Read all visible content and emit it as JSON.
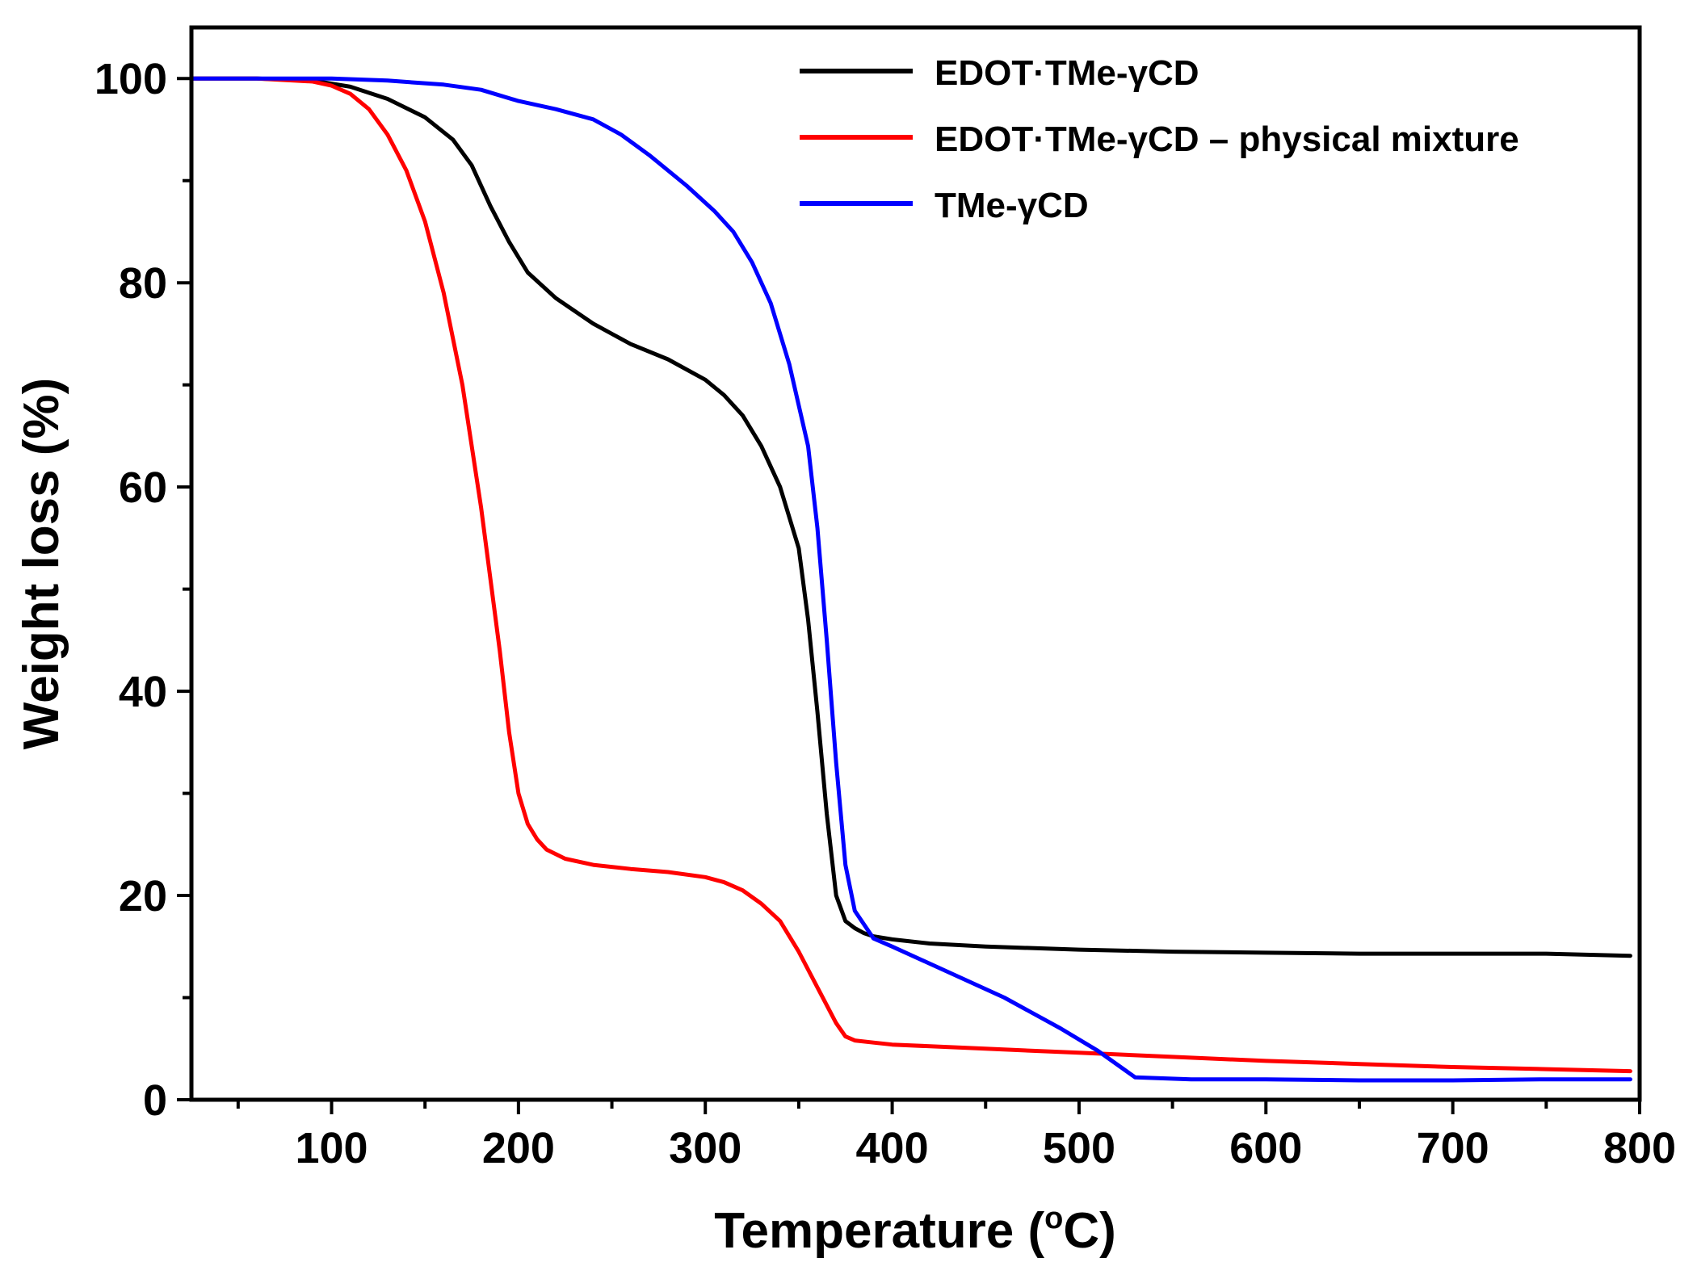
{
  "chart_data": {
    "type": "line",
    "xlabel_main": "Temperature (",
    "xlabel_sup": "o",
    "xlabel_end": "C)",
    "ylabel": "Weight loss (%)",
    "xlim": [
      25,
      800
    ],
    "ylim": [
      0,
      105
    ],
    "x_ticks": [
      100,
      200,
      300,
      400,
      500,
      600,
      700,
      800
    ],
    "x_minor_ticks": [
      50,
      150,
      250,
      350,
      450,
      550,
      650,
      750
    ],
    "y_ticks": [
      0,
      20,
      40,
      60,
      80,
      100
    ],
    "y_minor_ticks": [
      10,
      30,
      50,
      70,
      90
    ],
    "grid": false,
    "legend_position": "top-right",
    "series": [
      {
        "name": "EDOT·TMe-γCD",
        "color": "#000000",
        "x": [
          25,
          60,
          90,
          110,
          130,
          150,
          165,
          175,
          185,
          195,
          205,
          220,
          240,
          260,
          280,
          300,
          310,
          320,
          330,
          340,
          350,
          355,
          360,
          365,
          370,
          375,
          380,
          385,
          390,
          400,
          420,
          450,
          500,
          550,
          600,
          650,
          700,
          750,
          795
        ],
        "values": [
          100,
          100,
          99.8,
          99.2,
          98,
          96.2,
          94,
          91.5,
          87.5,
          84,
          81,
          78.5,
          76,
          74,
          72.5,
          70.5,
          69,
          67,
          64,
          60,
          54,
          47,
          38,
          28,
          20,
          17.5,
          16.8,
          16.3,
          16,
          15.7,
          15.3,
          15,
          14.7,
          14.5,
          14.4,
          14.3,
          14.3,
          14.3,
          14.1
        ]
      },
      {
        "name": "EDOT·TMe-γCD – physical mixture",
        "color": "#ff0000",
        "x": [
          25,
          60,
          90,
          100,
          110,
          120,
          130,
          140,
          150,
          160,
          170,
          180,
          190,
          195,
          200,
          205,
          210,
          215,
          225,
          240,
          260,
          280,
          300,
          310,
          320,
          330,
          340,
          350,
          360,
          370,
          375,
          380,
          390,
          400,
          450,
          500,
          550,
          600,
          650,
          700,
          750,
          795
        ],
        "values": [
          100,
          100,
          99.7,
          99.3,
          98.5,
          97,
          94.5,
          91,
          86,
          79,
          70,
          58,
          44,
          36,
          30,
          27,
          25.5,
          24.5,
          23.6,
          23,
          22.6,
          22.3,
          21.8,
          21.3,
          20.5,
          19.2,
          17.5,
          14.5,
          11,
          7.5,
          6.2,
          5.8,
          5.6,
          5.4,
          5,
          4.6,
          4.2,
          3.8,
          3.5,
          3.2,
          3,
          2.8
        ]
      },
      {
        "name": "TMe-γCD",
        "color": "#0000ff",
        "x": [
          25,
          100,
          130,
          160,
          180,
          200,
          220,
          240,
          255,
          270,
          290,
          305,
          315,
          325,
          335,
          345,
          355,
          360,
          365,
          370,
          375,
          380,
          390,
          400,
          430,
          460,
          490,
          510,
          530,
          560,
          600,
          650,
          700,
          750,
          795
        ],
        "values": [
          100,
          100,
          99.8,
          99.4,
          98.9,
          97.8,
          97,
          96,
          94.5,
          92.5,
          89.5,
          87,
          85,
          82,
          78,
          72,
          64,
          56,
          45,
          33,
          23,
          18.5,
          15.8,
          15,
          12.5,
          10,
          7,
          4.8,
          2.2,
          2,
          2,
          1.9,
          1.9,
          2,
          2
        ]
      }
    ]
  }
}
